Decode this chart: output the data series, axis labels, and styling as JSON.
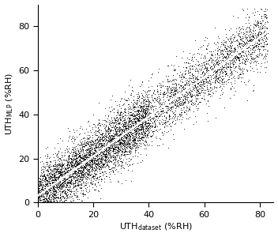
{
  "xlabel_main": "UTH",
  "xlabel_sub": "dataset",
  "xlabel_unit": "(%RH)",
  "ylabel_main": "UTH",
  "ylabel_sub": "MLP",
  "ylabel_unit": "(%RH)",
  "xlim": [
    0,
    85
  ],
  "ylim": [
    0,
    90
  ],
  "xticks": [
    0,
    20,
    40,
    60,
    80
  ],
  "yticks": [
    0,
    20,
    40,
    60,
    80
  ],
  "scatter_color": "black",
  "scatter_marker": ".",
  "scatter_size": 1.5,
  "line_color": "white",
  "line_width": 1.8,
  "n_points": 7000,
  "seed": 12345,
  "slope": 0.9,
  "intercept": 3.0,
  "noise_std": 6.5,
  "background_color": "white",
  "fig_width": 3.52,
  "fig_height": 3.0,
  "dpi": 100
}
